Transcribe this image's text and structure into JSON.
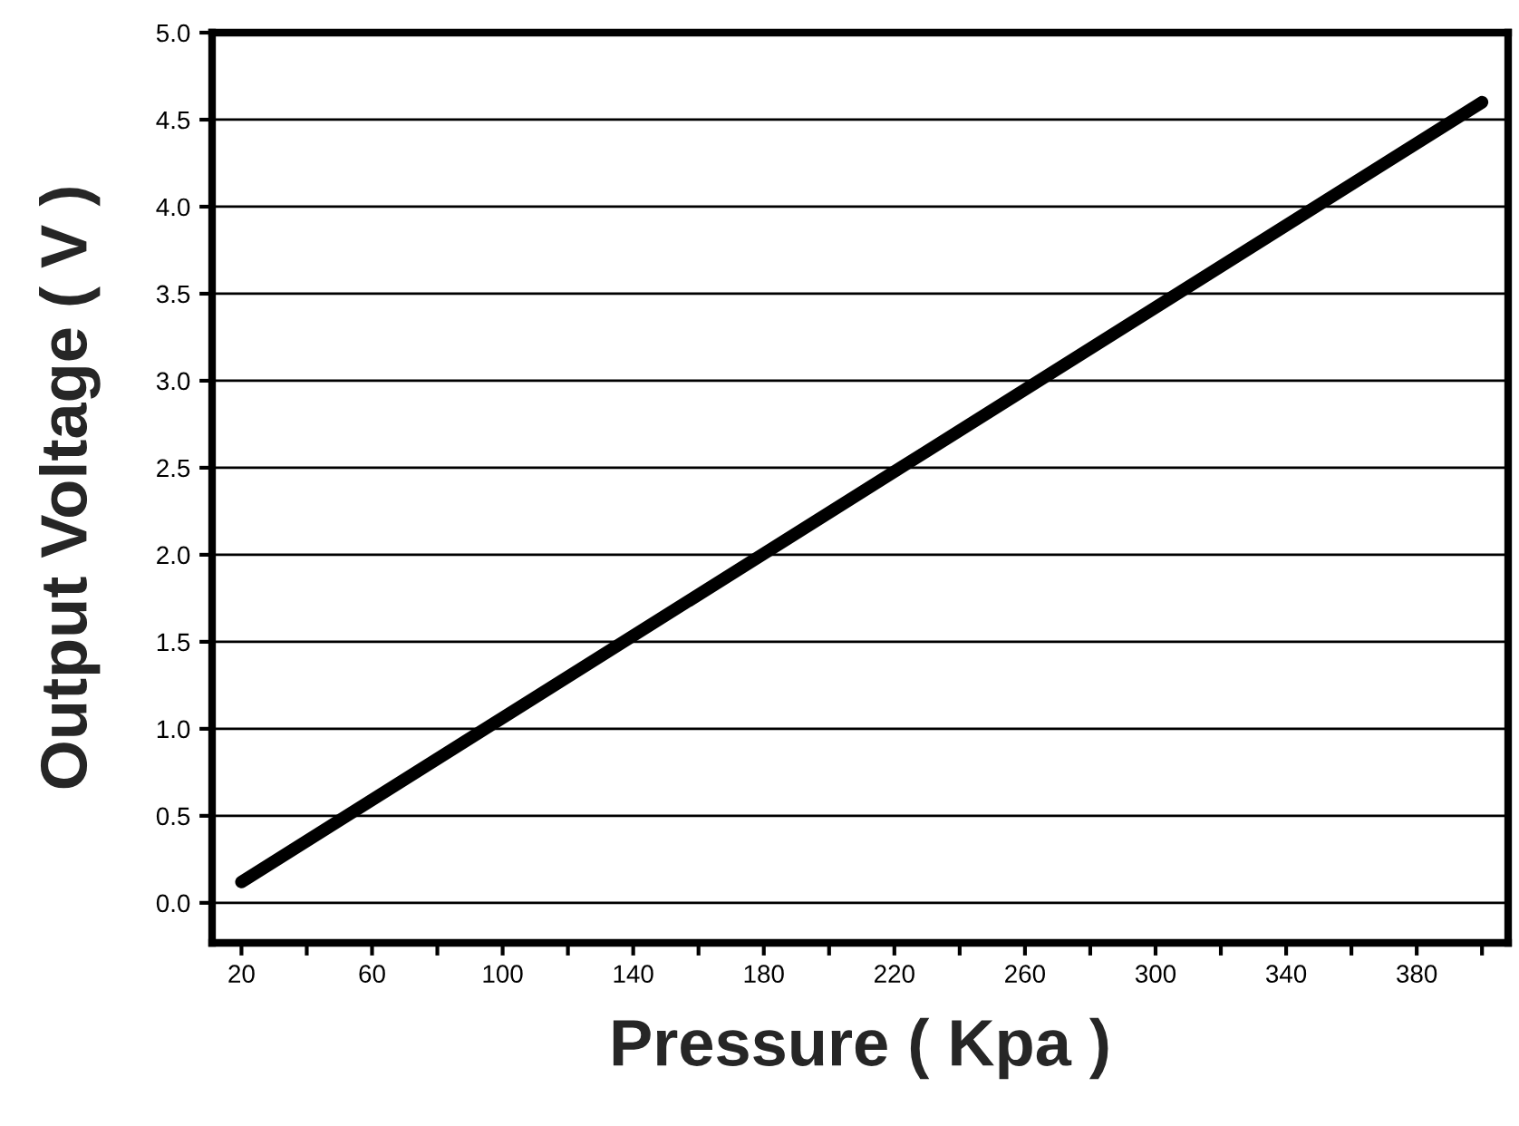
{
  "chart_data": {
    "type": "line",
    "xlabel": "Pressure ( Kpa )",
    "ylabel": "Output Voltage ( V )",
    "x": [
      20,
      400
    ],
    "series": [
      {
        "color": "#000000",
        "values": [
          0.12,
          4.6
        ]
      }
    ],
    "xlim": [
      11,
      408
    ],
    "xticks": [
      20,
      {
        "value": 40,
        "label": null
      },
      60,
      {
        "value": 80,
        "label": null
      },
      100,
      {
        "value": 120,
        "label": null
      },
      140,
      {
        "value": 160,
        "label": null
      },
      180,
      {
        "value": 200,
        "label": null
      },
      220,
      {
        "value": 240,
        "label": null
      },
      260,
      {
        "value": 280,
        "label": null
      },
      300,
      {
        "value": 320,
        "label": null
      },
      340,
      {
        "value": 360,
        "label": null
      },
      380,
      {
        "value": 400,
        "label": null
      }
    ],
    "ylim": [
      -0.23,
      5.0
    ],
    "yticks": [
      {
        "value": 0,
        "label": "0.0"
      },
      0.5,
      {
        "value": 1,
        "label": "1.0"
      },
      1.5,
      {
        "value": 2,
        "label": "2.0"
      },
      2.5,
      {
        "value": 3,
        "label": "3.0"
      },
      3.5,
      {
        "value": 4,
        "label": "4.0"
      },
      4.5,
      {
        "value": 5,
        "label": "5.0"
      }
    ],
    "grid": "y",
    "marker": "none",
    "line_style": "solid",
    "legend": false
  }
}
